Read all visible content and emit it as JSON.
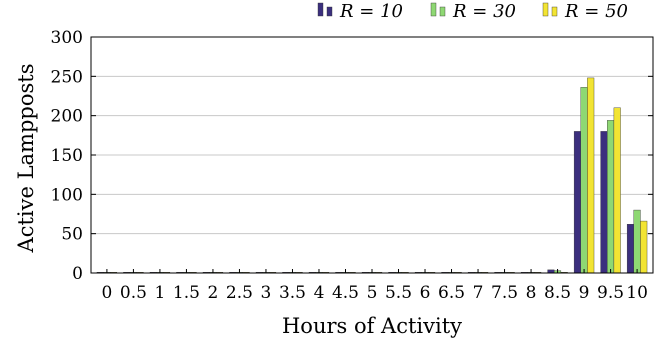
{
  "chart_data": {
    "type": "bar",
    "xlabel": "Hours of Activity",
    "ylabel": "Active Lampposts",
    "ylim": [
      0,
      300
    ],
    "yticks": [
      0,
      50,
      100,
      150,
      200,
      250,
      300
    ],
    "grid": "horizontal",
    "legend_position": "top-right",
    "categories": [
      "0",
      "0.5",
      "1",
      "1.5",
      "2",
      "2.5",
      "3",
      "3.5",
      "4",
      "4.5",
      "5",
      "5.5",
      "6",
      "6.5",
      "7",
      "7.5",
      "8",
      "8.5",
      "9",
      "9.5",
      "10"
    ],
    "series": [
      {
        "name": "R = 10",
        "color": "#3b2f7e",
        "values": [
          0,
          0,
          0,
          0,
          0,
          0,
          0,
          0,
          0,
          0,
          0,
          0,
          0,
          0,
          0,
          0,
          0,
          4,
          180,
          180,
          62
        ]
      },
      {
        "name": "R = 30",
        "color": "#8ed873",
        "values": [
          0,
          0,
          0,
          0,
          0,
          0,
          0,
          0,
          0,
          0,
          0,
          0,
          0,
          0,
          0,
          0,
          0,
          3,
          236,
          194,
          80
        ]
      },
      {
        "name": "R = 50",
        "color": "#f2e433",
        "values": [
          0,
          0,
          0,
          0,
          0,
          0,
          0,
          0,
          0,
          0,
          0,
          0,
          0,
          0,
          0,
          0,
          0,
          1,
          248,
          210,
          66
        ]
      }
    ]
  }
}
